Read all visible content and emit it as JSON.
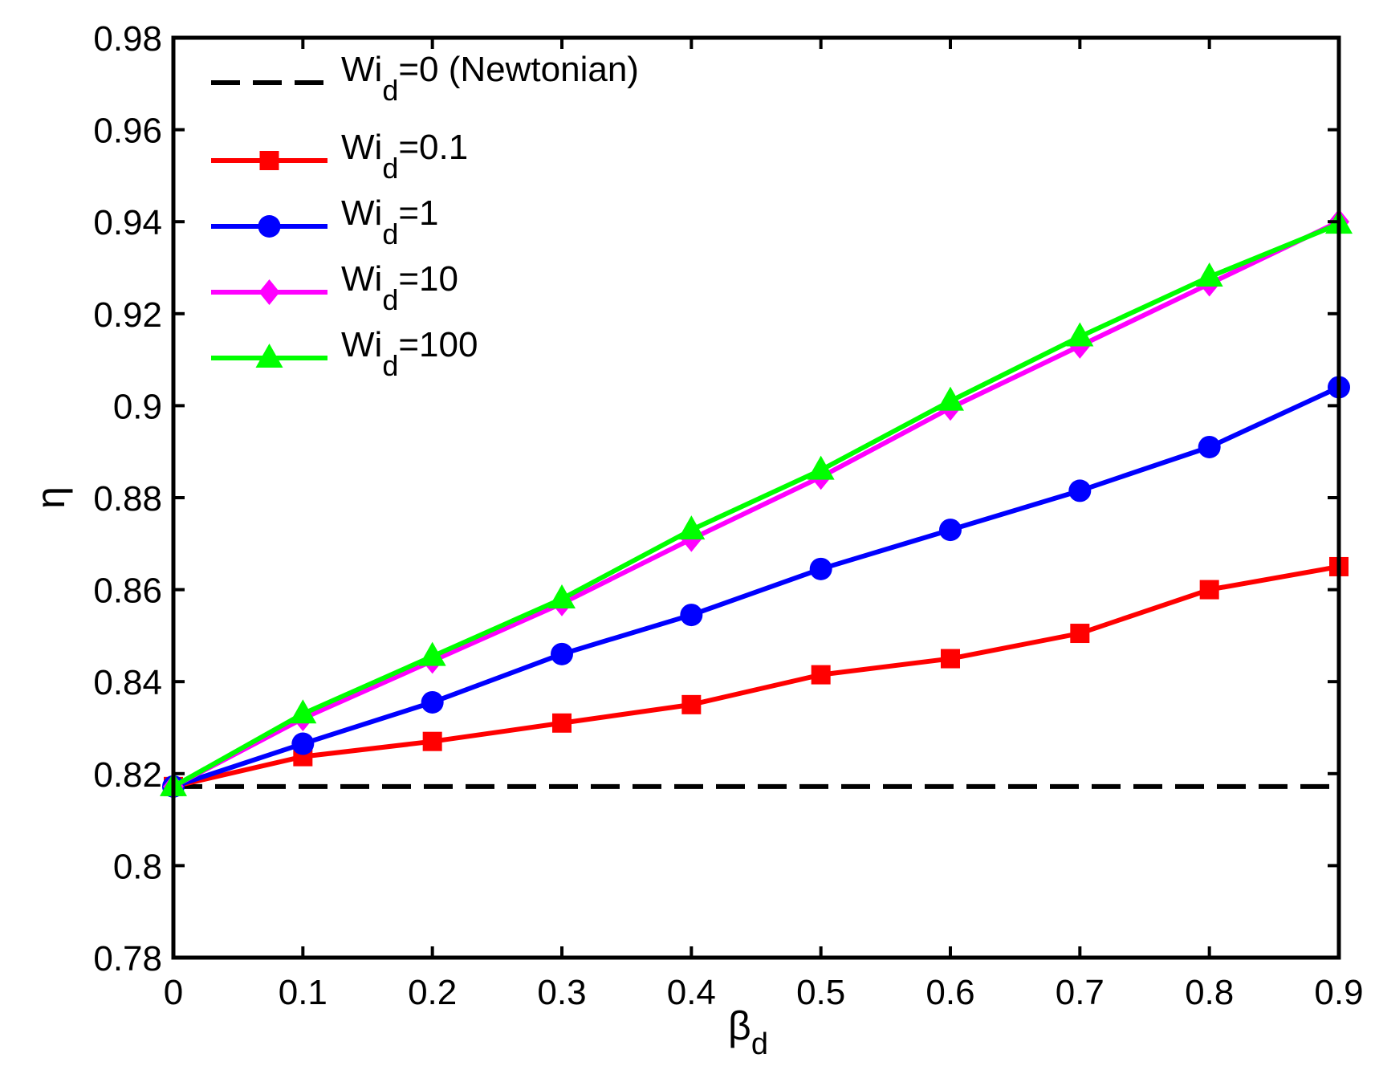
{
  "chart_data": {
    "type": "line",
    "x": [
      0,
      0.1,
      0.2,
      0.3,
      0.4,
      0.5,
      0.6,
      0.7,
      0.8,
      0.9
    ],
    "xlabel": "β",
    "xlabel_sub": "d",
    "ylabel": "η",
    "xlim": [
      0,
      0.9
    ],
    "ylim": [
      0.78,
      0.98
    ],
    "xticks": [
      "0",
      "0.1",
      "0.2",
      "0.3",
      "0.4",
      "0.5",
      "0.6",
      "0.7",
      "0.8",
      "0.9"
    ],
    "yticks": [
      "0.78",
      "0.8",
      "0.82",
      "0.84",
      "0.86",
      "0.88",
      "0.9",
      "0.92",
      "0.94",
      "0.96",
      "0.98"
    ],
    "grid": false,
    "legend_position": "top-left",
    "series": [
      {
        "name_main": "Wi",
        "name_sub": "d",
        "name_rest": "=0 (Newtonian)",
        "color": "#000000",
        "marker": "none",
        "dashed": true,
        "values": [
          0.8172,
          0.8172,
          0.8172,
          0.8172,
          0.8172,
          0.8172,
          0.8172,
          0.8172,
          0.8172,
          0.8172
        ]
      },
      {
        "name_main": "Wi",
        "name_sub": "d",
        "name_rest": "=0.1",
        "color": "#ff0000",
        "marker": "square",
        "dashed": false,
        "values": [
          0.8172,
          0.8237,
          0.827,
          0.831,
          0.835,
          0.8415,
          0.845,
          0.8505,
          0.86,
          0.865
        ]
      },
      {
        "name_main": "Wi",
        "name_sub": "d",
        "name_rest": "=1",
        "color": "#0000ff",
        "marker": "circle",
        "dashed": false,
        "values": [
          0.8172,
          0.8265,
          0.8355,
          0.846,
          0.8545,
          0.8645,
          0.873,
          0.8815,
          0.891,
          0.904
        ]
      },
      {
        "name_main": "Wi",
        "name_sub": "d",
        "name_rest": "=10",
        "color": "#ff00ff",
        "marker": "diamond",
        "dashed": false,
        "values": [
          0.8172,
          0.832,
          0.8445,
          0.857,
          0.871,
          0.8845,
          0.8995,
          0.913,
          0.9265,
          0.94
        ]
      },
      {
        "name_main": "Wi",
        "name_sub": "d",
        "name_rest": "=100",
        "color": "#00ff00",
        "marker": "triangle",
        "dashed": false,
        "values": [
          0.8172,
          0.833,
          0.8455,
          0.858,
          0.873,
          0.886,
          0.901,
          0.915,
          0.928,
          0.9395
        ]
      }
    ]
  }
}
